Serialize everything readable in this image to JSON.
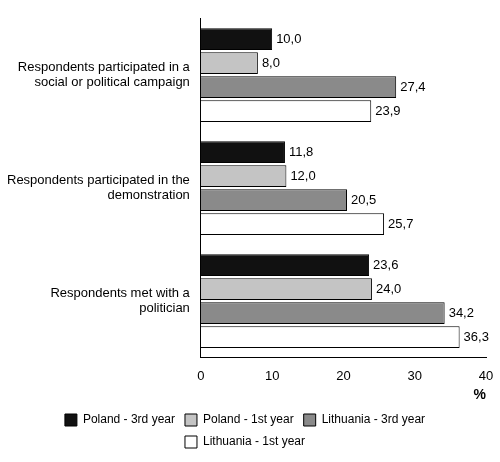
{
  "chart_data": {
    "type": "bar",
    "orientation": "horizontal",
    "categories": [
      "Respondents participated in a social or political campaign",
      "Respondents participated in the demonstration",
      "Respondents met with a politician"
    ],
    "series": [
      {
        "name": "Poland - 3rd year",
        "color": "#111111",
        "values": [
          10.0,
          11.8,
          23.6
        ],
        "value_labels": [
          "10,0",
          "11,8",
          "23,6"
        ]
      },
      {
        "name": "Poland - 1st year",
        "color": "#c4c4c4",
        "values": [
          8.0,
          12.0,
          24.0
        ],
        "value_labels": [
          "8,0",
          "12,0",
          "24,0"
        ]
      },
      {
        "name": "Lithuania - 3rd year",
        "color": "#8a8a8a",
        "values": [
          27.4,
          20.5,
          34.2
        ],
        "value_labels": [
          "27,4",
          "20,5",
          "34,2"
        ]
      },
      {
        "name": "Lithuania - 1st year",
        "color": "#ffffff",
        "values": [
          23.9,
          25.7,
          36.3
        ],
        "value_labels": [
          "23,9",
          "25,7",
          "36,3"
        ]
      }
    ],
    "xlabel": "%",
    "xlim": [
      0,
      40
    ],
    "xticks": [
      0,
      10,
      20,
      30,
      40
    ],
    "grid": false,
    "legend": "bottom",
    "data_labels": true
  }
}
